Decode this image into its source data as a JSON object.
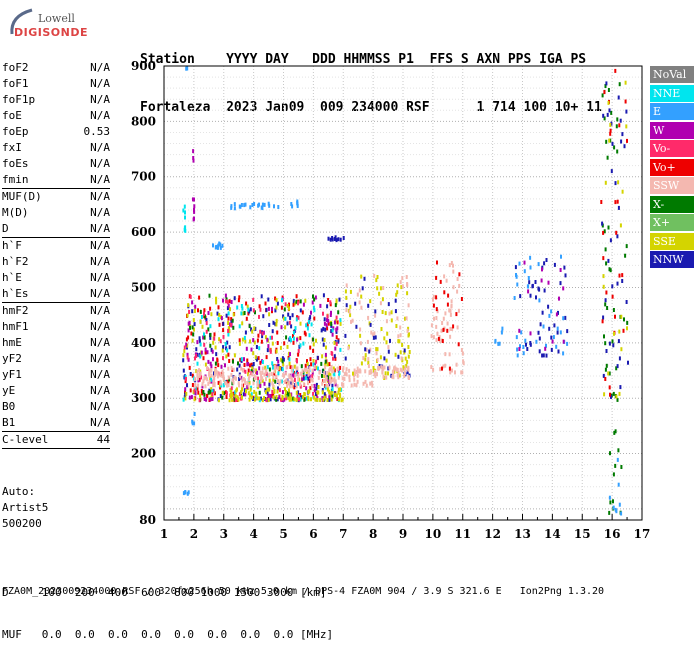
{
  "logo": {
    "line1": "Lowell",
    "line2": "DIGISONDE"
  },
  "header": {
    "line1": "Station    YYYY DAY   DDD HHMMSS P1  FFS S AXN PPS IGA PS",
    "line2": "Fortaleza  2023 Jan09  009 234000 RSF      1 714 100 10+ 11"
  },
  "params": {
    "group1": [
      {
        "name": "foF2",
        "value": "N/A"
      },
      {
        "name": "foF1",
        "value": "N/A"
      },
      {
        "name": "foF1p",
        "value": "N/A"
      },
      {
        "name": "foE",
        "value": "N/A"
      },
      {
        "name": "foEp",
        "value": "0.53"
      },
      {
        "name": "fxI",
        "value": "N/A"
      },
      {
        "name": "foEs",
        "value": "N/A"
      },
      {
        "name": "fmin",
        "value": "N/A"
      }
    ],
    "group2": [
      {
        "name": "MUF(D)",
        "value": "N/A"
      },
      {
        "name": "M(D)",
        "value": "N/A"
      },
      {
        "name": "D",
        "value": "N/A"
      }
    ],
    "group3": [
      {
        "name": "h`F",
        "value": "N/A"
      },
      {
        "name": "h`F2",
        "value": "N/A"
      },
      {
        "name": "h`E",
        "value": "N/A"
      },
      {
        "name": "h`Es",
        "value": "N/A"
      }
    ],
    "group4": [
      {
        "name": "hmF2",
        "value": "N/A"
      },
      {
        "name": "hmF1",
        "value": "N/A"
      },
      {
        "name": "hmE",
        "value": "N/A"
      },
      {
        "name": "yF2",
        "value": "N/A"
      },
      {
        "name": "yF1",
        "value": "N/A"
      },
      {
        "name": "yE",
        "value": "N/A"
      },
      {
        "name": "B0",
        "value": "N/A"
      },
      {
        "name": "B1",
        "value": "N/A"
      }
    ],
    "group5": [
      {
        "name": "C-level",
        "value": "44"
      }
    ]
  },
  "auto": {
    "line1": "Auto:",
    "line2": "Artist5",
    "line3": "500200"
  },
  "bottom": {
    "line1": "D     100  200  400  600  800 1000 1500 3000 [km]",
    "line2": "MUF   0.0  0.0  0.0  0.0  0.0  0.0  0.0  0.0 [MHz]"
  },
  "footer": "FZA0M_2023009234000.RSF / 320fx256h 50 kHz 5.0 km / DPS-4 FZA0M 904 / 3.9 S 321.6 E   Ion2Png 1.3.20",
  "legend": [
    {
      "label": "NoVal",
      "color": "#808080"
    },
    {
      "label": "NNE",
      "color": "#00e5ee"
    },
    {
      "label": "E",
      "color": "#33a0ff"
    },
    {
      "label": "W",
      "color": "#b000b0"
    },
    {
      "label": "Vo-",
      "color": "#ff2a6a"
    },
    {
      "label": "Vo+",
      "color": "#ee0000"
    },
    {
      "label": "SSW",
      "color": "#f4b8b0"
    },
    {
      "label": "X-",
      "color": "#007a00"
    },
    {
      "label": "X+",
      "color": "#70c060"
    },
    {
      "label": "SSE",
      "color": "#d4d400"
    },
    {
      "label": "NNW",
      "color": "#1a1ab0"
    }
  ],
  "chart_data": {
    "type": "scatter",
    "xlim": [
      1,
      17
    ],
    "ylim": [
      80,
      900
    ],
    "x_ticks": [
      "1",
      "2",
      "3",
      "4",
      "5",
      "6",
      "7",
      "8",
      "9",
      "10",
      "11",
      "12",
      "13",
      "14",
      "15",
      "16",
      "17"
    ],
    "y_ticks": [
      "80",
      "200",
      "300",
      "400",
      "500",
      "600",
      "700",
      "800",
      "900"
    ],
    "grid": true,
    "clusters": [
      {
        "x_range": [
          1.6,
          1.7
        ],
        "y_range": [
          600,
          650
        ],
        "color": "#00e5ee",
        "n": 8
      },
      {
        "x_range": [
          1.7,
          1.75
        ],
        "y_range": [
          895,
          900
        ],
        "color": "#33a0ff",
        "n": 2
      },
      {
        "x_range": [
          1.9,
          2.0
        ],
        "y_range": [
          250,
          280
        ],
        "color": "#33a0ff",
        "n": 4
      },
      {
        "x_range": [
          1.6,
          1.8
        ],
        "y_range": [
          130,
          140
        ],
        "color": "#33a0ff",
        "n": 5
      },
      {
        "x_range": [
          1.9,
          2.0
        ],
        "y_range": [
          620,
          760
        ],
        "color": "#b000b0",
        "n": 10
      },
      {
        "x_range": [
          2.6,
          3.0
        ],
        "y_range": [
          575,
          585
        ],
        "color": "#33a0ff",
        "n": 10
      },
      {
        "x_range": [
          3.2,
          4.8
        ],
        "y_range": [
          645,
          655
        ],
        "color": "#33a0ff",
        "n": 22
      },
      {
        "x_range": [
          5.1,
          5.6
        ],
        "y_range": [
          650,
          660
        ],
        "color": "#33a0ff",
        "n": 6
      },
      {
        "x_range": [
          6.4,
          7.0
        ],
        "y_range": [
          588,
          596
        ],
        "color": "#1a1ab0",
        "n": 10
      },
      {
        "x_range": [
          1.6,
          6.9
        ],
        "y_range": [
          300,
          490
        ],
        "color": "#ee0000",
        "n": 160
      },
      {
        "x_range": [
          1.6,
          6.9
        ],
        "y_range": [
          300,
          490
        ],
        "color": "#1a1ab0",
        "n": 160
      },
      {
        "x_range": [
          1.6,
          6.9
        ],
        "y_range": [
          300,
          490
        ],
        "color": "#d4d400",
        "n": 150
      },
      {
        "x_range": [
          1.6,
          6.9
        ],
        "y_range": [
          300,
          490
        ],
        "color": "#b000b0",
        "n": 120
      },
      {
        "x_range": [
          1.6,
          6.9
        ],
        "y_range": [
          300,
          490
        ],
        "color": "#00e5ee",
        "n": 90
      },
      {
        "x_range": [
          1.6,
          6.9
        ],
        "y_range": [
          300,
          490
        ],
        "color": "#007a00",
        "n": 60
      },
      {
        "x_range": [
          1.6,
          6.9
        ],
        "y_range": [
          300,
          490
        ],
        "color": "#ff2a6a",
        "n": 80
      },
      {
        "x_range": [
          2.0,
          8.0
        ],
        "y_range": [
          325,
          360
        ],
        "color": "#f4b8b0",
        "n": 220
      },
      {
        "x_range": [
          2.9,
          7.0
        ],
        "y_range": [
          300,
          320
        ],
        "color": "#d4d400",
        "n": 80
      },
      {
        "x_range": [
          7.0,
          9.2
        ],
        "y_range": [
          340,
          530
        ],
        "color": "#d4d400",
        "n": 70
      },
      {
        "x_range": [
          7.0,
          9.2
        ],
        "y_range": [
          340,
          530
        ],
        "color": "#f4b8b0",
        "n": 50
      },
      {
        "x_range": [
          7.0,
          9.2
        ],
        "y_range": [
          340,
          530
        ],
        "color": "#1a1ab0",
        "n": 30
      },
      {
        "x_range": [
          8.0,
          9.2
        ],
        "y_range": [
          340,
          360
        ],
        "color": "#f4b8b0",
        "n": 40
      },
      {
        "x_range": [
          9.9,
          11.0
        ],
        "y_range": [
          350,
          550
        ],
        "color": "#f4b8b0",
        "n": 60
      },
      {
        "x_range": [
          9.9,
          11.0
        ],
        "y_range": [
          350,
          550
        ],
        "color": "#ee0000",
        "n": 20
      },
      {
        "x_range": [
          12.0,
          12.3
        ],
        "y_range": [
          400,
          480
        ],
        "color": "#33a0ff",
        "n": 6
      },
      {
        "x_range": [
          12.7,
          14.5
        ],
        "y_range": [
          380,
          560
        ],
        "color": "#1a1ab0",
        "n": 40
      },
      {
        "x_range": [
          12.7,
          14.5
        ],
        "y_range": [
          380,
          560
        ],
        "color": "#33a0ff",
        "n": 35
      },
      {
        "x_range": [
          12.7,
          14.5
        ],
        "y_range": [
          380,
          560
        ],
        "color": "#b000b0",
        "n": 15
      },
      {
        "x_range": [
          15.6,
          16.5
        ],
        "y_range": [
          300,
          900
        ],
        "color": "#007a00",
        "n": 40
      },
      {
        "x_range": [
          15.6,
          16.5
        ],
        "y_range": [
          300,
          900
        ],
        "color": "#1a1ab0",
        "n": 35
      },
      {
        "x_range": [
          15.6,
          16.5
        ],
        "y_range": [
          300,
          900
        ],
        "color": "#ee0000",
        "n": 25
      },
      {
        "x_range": [
          15.6,
          16.5
        ],
        "y_range": [
          300,
          900
        ],
        "color": "#d4d400",
        "n": 20
      },
      {
        "x_range": [
          15.8,
          16.3
        ],
        "y_range": [
          85,
          250
        ],
        "color": "#007a00",
        "n": 12
      },
      {
        "x_range": [
          15.8,
          16.3
        ],
        "y_range": [
          85,
          250
        ],
        "color": "#33a0ff",
        "n": 8
      }
    ]
  }
}
